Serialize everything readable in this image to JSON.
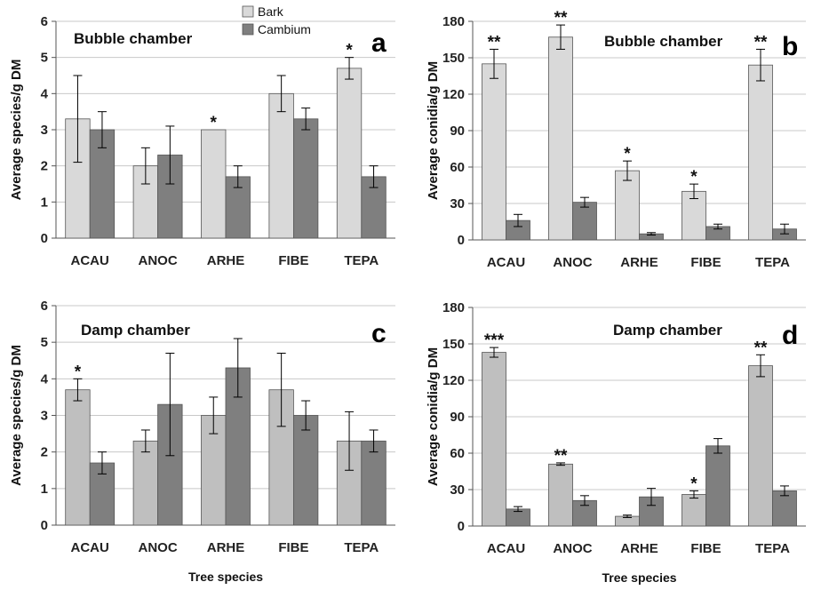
{
  "colors": {
    "bark": "#d9d9d9",
    "bark_d": "#bfbfbf",
    "cambium": "#7f7f7f",
    "err": "#000000",
    "grid": "#c8c8c8"
  },
  "legend": {
    "bark": "Bark",
    "cambium": "Cambium"
  },
  "chart_data": [
    {
      "panel": "a",
      "type": "bar",
      "title": "Bubble chamber",
      "xlabel": "",
      "ylabel": "Average species/g DM",
      "ylim": [
        0,
        6
      ],
      "yticks": [
        0,
        1,
        2,
        3,
        4,
        5,
        6
      ],
      "categories": [
        "ACAU",
        "ANOC",
        "ARHE",
        "FIBE",
        "TEPA"
      ],
      "series": [
        {
          "name": "Bark",
          "values": [
            3.3,
            2.0,
            3.0,
            4.0,
            4.7
          ],
          "errors": [
            1.2,
            0.5,
            0.0,
            0.5,
            0.3
          ]
        },
        {
          "name": "Cambium",
          "values": [
            3.0,
            2.3,
            1.7,
            3.3,
            1.7
          ],
          "errors": [
            0.5,
            0.8,
            0.3,
            0.3,
            0.3
          ]
        }
      ],
      "stars": [
        {
          "category": "ARHE",
          "text": "*"
        },
        {
          "category": "TEPA",
          "text": "*"
        }
      ],
      "legend_shown": true,
      "grid": true
    },
    {
      "panel": "b",
      "type": "bar",
      "title": "Bubble chamber",
      "xlabel": "",
      "ylabel": "Average conidia/g DM",
      "ylim": [
        0,
        180
      ],
      "yticks": [
        0,
        30,
        60,
        90,
        120,
        150,
        180
      ],
      "categories": [
        "ACAU",
        "ANOC",
        "ARHE",
        "FIBE",
        "TEPA"
      ],
      "series": [
        {
          "name": "Bark",
          "values": [
            145,
            167,
            57,
            40,
            144
          ],
          "errors": [
            12,
            10,
            8,
            6,
            13
          ]
        },
        {
          "name": "Cambium",
          "values": [
            16,
            31,
            5,
            11,
            9
          ],
          "errors": [
            5,
            4,
            1,
            2,
            4
          ]
        }
      ],
      "stars": [
        {
          "category": "ACAU",
          "text": "**"
        },
        {
          "category": "ANOC",
          "text": "**"
        },
        {
          "category": "ARHE",
          "text": "*"
        },
        {
          "category": "FIBE",
          "text": "*"
        },
        {
          "category": "TEPA",
          "text": "**"
        }
      ],
      "legend_shown": false,
      "grid": true
    },
    {
      "panel": "c",
      "type": "bar",
      "title": "Damp chamber",
      "xlabel": "Tree species",
      "ylabel": "Average species/g DM",
      "ylim": [
        0,
        6
      ],
      "yticks": [
        0,
        1,
        2,
        3,
        4,
        5,
        6
      ],
      "categories": [
        "ACAU",
        "ANOC",
        "ARHE",
        "FIBE",
        "TEPA"
      ],
      "series": [
        {
          "name": "Bark",
          "values": [
            3.7,
            2.3,
            3.0,
            3.7,
            2.3
          ],
          "errors": [
            0.3,
            0.3,
            0.5,
            1.0,
            0.8
          ]
        },
        {
          "name": "Cambium",
          "values": [
            1.7,
            3.3,
            4.3,
            3.0,
            2.3
          ],
          "errors": [
            0.3,
            1.4,
            0.8,
            0.4,
            0.3
          ]
        }
      ],
      "stars": [
        {
          "category": "ACAU",
          "text": "*"
        }
      ],
      "legend_shown": false,
      "grid": true
    },
    {
      "panel": "d",
      "type": "bar",
      "title": "Damp chamber",
      "xlabel": "Tree species",
      "ylabel": "Average conidia/g DM",
      "ylim": [
        0,
        180
      ],
      "yticks": [
        0,
        30,
        60,
        90,
        120,
        150,
        180
      ],
      "categories": [
        "ACAU",
        "ANOC",
        "ARHE",
        "FIBE",
        "TEPA"
      ],
      "series": [
        {
          "name": "Bark",
          "values": [
            143,
            51,
            8,
            26,
            132
          ],
          "errors": [
            4,
            1,
            1,
            3,
            9
          ]
        },
        {
          "name": "Cambium",
          "values": [
            14,
            21,
            24,
            66,
            29
          ],
          "errors": [
            2,
            4,
            7,
            6,
            4
          ]
        }
      ],
      "stars": [
        {
          "category": "ACAU",
          "text": "***"
        },
        {
          "category": "ANOC",
          "text": "**"
        },
        {
          "category": "FIBE",
          "text": "*"
        },
        {
          "category": "TEPA",
          "text": "**"
        }
      ],
      "legend_shown": false,
      "grid": true
    }
  ]
}
